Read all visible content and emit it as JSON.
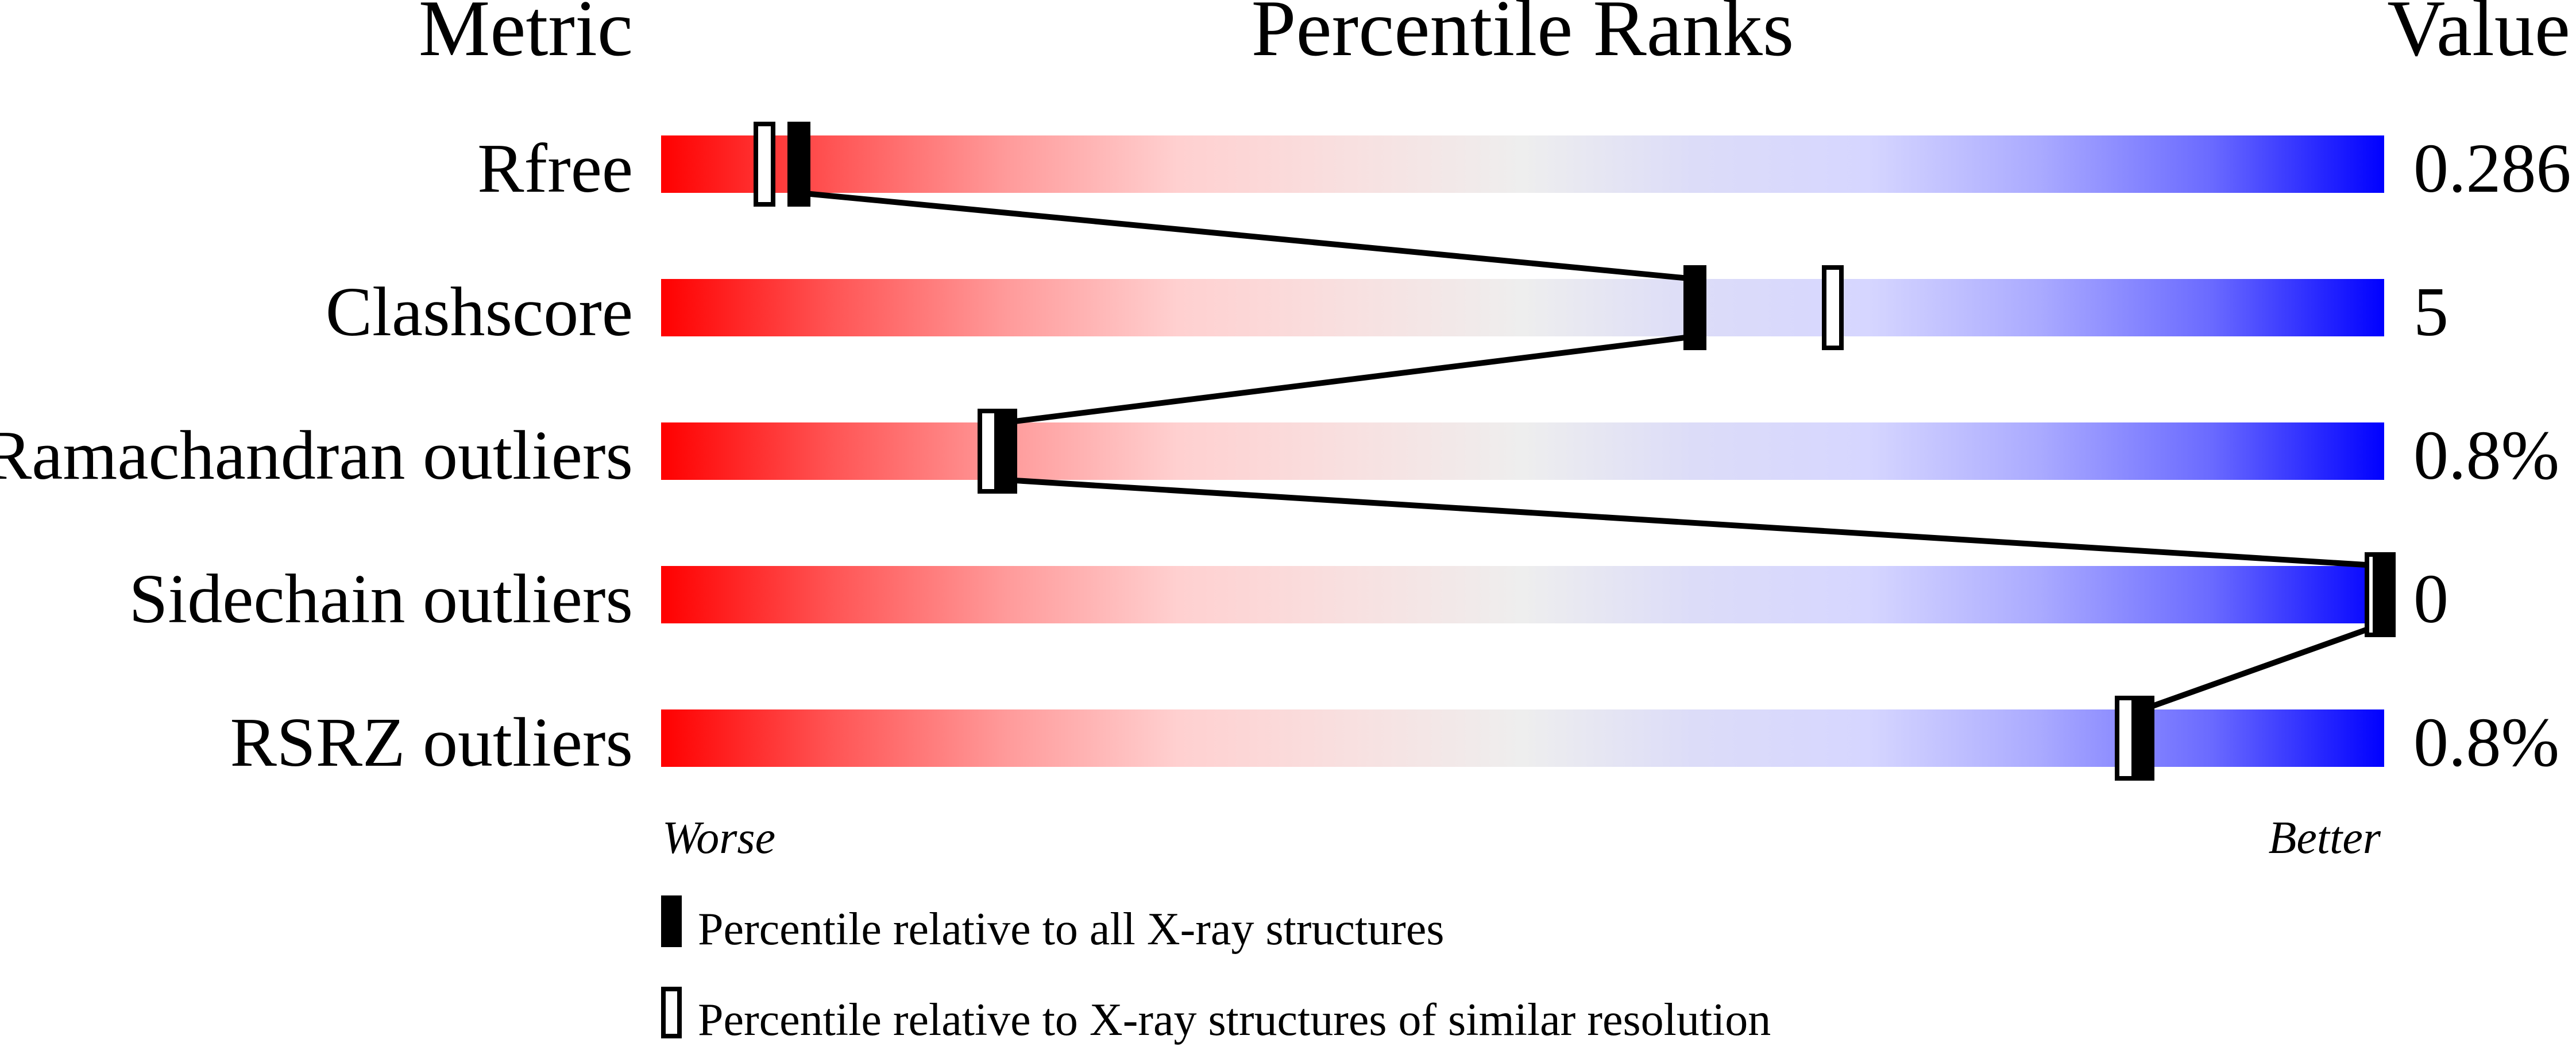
{
  "chart_data": {
    "type": "percentile-rank-bars",
    "headers": {
      "metric": "Metric",
      "percentile": "Percentile Ranks",
      "value": "Value"
    },
    "xlim": [
      0,
      100
    ],
    "axis": {
      "worse": "Worse",
      "better": "Better"
    },
    "metrics": [
      {
        "name": "Rfree",
        "value": "0.286",
        "percentile_all": 8,
        "percentile_similar": 6
      },
      {
        "name": "Clashscore",
        "value": "5",
        "percentile_all": 60,
        "percentile_similar": 68
      },
      {
        "name": "Ramachandran outliers",
        "value": "0.8%",
        "percentile_all": 20,
        "percentile_similar": 19
      },
      {
        "name": "Sidechain outliers",
        "value": "0",
        "percentile_all": 100,
        "percentile_similar": 100
      },
      {
        "name": "RSRZ outliers",
        "value": "0.8%",
        "percentile_all": 86,
        "percentile_similar": 85
      }
    ],
    "legend": {
      "all": "Percentile relative to all X-ray structures",
      "similar": "Percentile relative to X-ray structures of similar resolution"
    },
    "colors": {
      "worse": "#ff0000",
      "middle": "#eeeeee",
      "better": "#0000ff",
      "marker": "#000000"
    }
  }
}
